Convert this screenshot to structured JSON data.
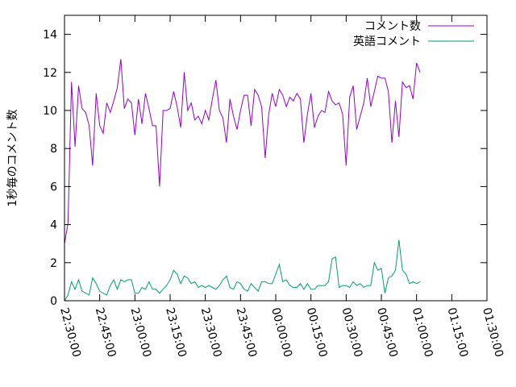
{
  "chart_data": {
    "type": "line",
    "ylabel": "1秒毎のコメント数",
    "xlabel": "",
    "ylim": [
      0,
      15
    ],
    "yticks": [
      "0",
      "2",
      "4",
      "6",
      "8",
      "10",
      "12",
      "14"
    ],
    "xlim": [
      "22:30:00",
      "01:30:00"
    ],
    "xticks": [
      "22:30:00",
      "22:45:00",
      "23:00:00",
      "23:15:00",
      "23:30:00",
      "23:45:00",
      "00:00:00",
      "00:15:00",
      "00:30:00",
      "00:45:00",
      "01:00:00",
      "01:15:00",
      "01:30:00"
    ],
    "sample_interval": "00:01:30",
    "legend_position": "top-right",
    "grid": false,
    "series": [
      {
        "name": "コメント数",
        "color": "#9400d3",
        "values": [
          3.0,
          4.1,
          11.5,
          8.1,
          11.3,
          10.1,
          9.9,
          9.2,
          7.1,
          10.9,
          9.2,
          8.8,
          10.4,
          9.9,
          10.5,
          11.2,
          12.7,
          10.1,
          10.6,
          10.4,
          8.7,
          10.6,
          9.3,
          10.9,
          10.1,
          9.2,
          9.2,
          6.0,
          10.0,
          10.0,
          10.1,
          11.0,
          10.2,
          9.1,
          12.0,
          10.0,
          10.4,
          9.5,
          9.7,
          9.3,
          10.0,
          9.5,
          10.6,
          11.6,
          10.0,
          9.6,
          8.3,
          10.6,
          9.7,
          9.0,
          10.0,
          10.8,
          10.8,
          9.2,
          11.1,
          10.8,
          10.2,
          7.5,
          9.8,
          10.9,
          10.2,
          11.1,
          10.8,
          10.2,
          10.7,
          10.5,
          10.9,
          10.6,
          8.3,
          9.8,
          10.9,
          9.1,
          9.7,
          10.0,
          9.9,
          11.0,
          10.5,
          10.3,
          10.4,
          9.8,
          7.1,
          10.7,
          11.3,
          9.0,
          9.7,
          10.4,
          11.7,
          10.2,
          11.0,
          11.8,
          11.7,
          11.7,
          11.0,
          8.3,
          10.5,
          8.6,
          11.5,
          11.2,
          11.3,
          10.6,
          12.5,
          12.0
        ]
      },
      {
        "name": "英語コメント",
        "color": "#009e73",
        "values": [
          0.0,
          0.3,
          1.0,
          0.6,
          1.1,
          0.5,
          0.4,
          0.3,
          1.2,
          0.9,
          0.5,
          0.4,
          0.3,
          0.8,
          1.1,
          0.6,
          1.1,
          1.0,
          1.1,
          1.1,
          0.4,
          0.4,
          0.7,
          0.6,
          1.0,
          0.6,
          0.6,
          0.4,
          0.6,
          0.8,
          1.1,
          1.6,
          1.4,
          0.9,
          1.3,
          1.2,
          0.9,
          1.0,
          0.7,
          0.8,
          0.7,
          0.8,
          0.7,
          0.6,
          0.8,
          1.1,
          1.3,
          0.7,
          0.6,
          1.0,
          0.9,
          0.6,
          0.5,
          0.9,
          0.7,
          0.5,
          1.0,
          1.0,
          0.9,
          0.9,
          1.4,
          1.9,
          1.0,
          1.1,
          0.8,
          0.7,
          0.7,
          0.9,
          0.6,
          0.9,
          0.6,
          0.6,
          0.8,
          0.8,
          0.8,
          1.0,
          2.2,
          2.3,
          0.7,
          0.8,
          0.8,
          0.7,
          1.0,
          0.8,
          0.9,
          0.7,
          0.8,
          0.8,
          2.0,
          1.6,
          1.7,
          0.4,
          1.2,
          1.3,
          1.6,
          3.2,
          1.6,
          1.4,
          0.9,
          1.0,
          0.9,
          1.0
        ]
      }
    ]
  }
}
